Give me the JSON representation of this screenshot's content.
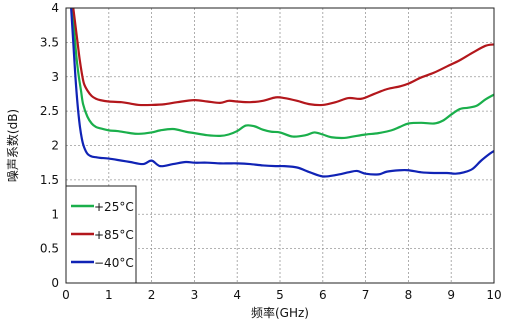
{
  "chart_data": {
    "type": "line",
    "xlabel": "频率(GHz)",
    "ylabel": "噪声系数(dB)",
    "xlim": [
      0,
      10
    ],
    "ylim": [
      0,
      4
    ],
    "xticks": [
      "0",
      "1",
      "2",
      "3",
      "4",
      "5",
      "6",
      "7",
      "8",
      "9",
      "10"
    ],
    "yticks": [
      "0",
      "0.5",
      "1",
      "1.5",
      "2",
      "2.5",
      "3",
      "3.5",
      "4"
    ],
    "grid": true,
    "legend_position": "bottom-left",
    "series": [
      {
        "name": "+25°C",
        "color": "#1aaf4b",
        "x": [
          0.15,
          0.2,
          0.25,
          0.3,
          0.35,
          0.4,
          0.5,
          0.6,
          0.7,
          0.8,
          1.0,
          1.2,
          1.5,
          1.7,
          2.0,
          2.2,
          2.5,
          2.8,
          3.0,
          3.3,
          3.6,
          3.8,
          4.0,
          4.2,
          4.4,
          4.6,
          4.8,
          5.0,
          5.3,
          5.6,
          5.8,
          6.0,
          6.2,
          6.5,
          6.7,
          7.0,
          7.3,
          7.6,
          7.8,
          8.0,
          8.3,
          8.6,
          8.8,
          9.0,
          9.2,
          9.4,
          9.6,
          9.8,
          10.0
        ],
        "values": [
          4.0,
          3.6,
          3.25,
          3.0,
          2.8,
          2.6,
          2.42,
          2.32,
          2.27,
          2.25,
          2.22,
          2.21,
          2.18,
          2.17,
          2.19,
          2.22,
          2.24,
          2.2,
          2.18,
          2.15,
          2.14,
          2.16,
          2.21,
          2.29,
          2.28,
          2.23,
          2.2,
          2.19,
          2.13,
          2.15,
          2.19,
          2.16,
          2.12,
          2.11,
          2.13,
          2.16,
          2.18,
          2.22,
          2.27,
          2.32,
          2.33,
          2.32,
          2.36,
          2.45,
          2.53,
          2.55,
          2.58,
          2.67,
          2.74
        ]
      },
      {
        "name": "+85°C",
        "color": "#b3171c",
        "x": [
          0.17,
          0.22,
          0.27,
          0.32,
          0.37,
          0.42,
          0.5,
          0.6,
          0.7,
          0.8,
          1.0,
          1.3,
          1.5,
          1.7,
          2.0,
          2.3,
          2.6,
          3.0,
          3.3,
          3.6,
          3.8,
          4.0,
          4.3,
          4.6,
          4.9,
          5.1,
          5.4,
          5.7,
          6.0,
          6.3,
          6.6,
          6.9,
          7.2,
          7.5,
          7.8,
          8.0,
          8.3,
          8.6,
          8.9,
          9.2,
          9.5,
          9.8,
          10.0
        ],
        "values": [
          4.0,
          3.75,
          3.5,
          3.25,
          3.05,
          2.9,
          2.8,
          2.72,
          2.68,
          2.66,
          2.64,
          2.63,
          2.61,
          2.59,
          2.59,
          2.6,
          2.63,
          2.66,
          2.64,
          2.62,
          2.65,
          2.64,
          2.63,
          2.65,
          2.7,
          2.69,
          2.65,
          2.6,
          2.59,
          2.63,
          2.69,
          2.68,
          2.75,
          2.82,
          2.86,
          2.9,
          2.99,
          3.06,
          3.15,
          3.24,
          3.35,
          3.45,
          3.47
        ]
      },
      {
        "name": "−40°C",
        "color": "#1023b5",
        "x": [
          0.12,
          0.17,
          0.22,
          0.27,
          0.32,
          0.37,
          0.42,
          0.5,
          0.6,
          0.7,
          0.8,
          1.0,
          1.3,
          1.5,
          1.8,
          2.0,
          2.2,
          2.5,
          2.8,
          3.0,
          3.3,
          3.6,
          3.8,
          4.0,
          4.3,
          4.6,
          4.9,
          5.1,
          5.4,
          5.7,
          6.0,
          6.3,
          6.6,
          6.8,
          7.0,
          7.3,
          7.5,
          7.8,
          8.0,
          8.3,
          8.6,
          8.9,
          9.1,
          9.3,
          9.5,
          9.7,
          9.9,
          10.0
        ],
        "values": [
          4.0,
          3.5,
          3.0,
          2.6,
          2.3,
          2.1,
          1.98,
          1.88,
          1.84,
          1.83,
          1.82,
          1.81,
          1.78,
          1.76,
          1.73,
          1.78,
          1.7,
          1.73,
          1.76,
          1.75,
          1.75,
          1.74,
          1.74,
          1.74,
          1.73,
          1.71,
          1.7,
          1.7,
          1.68,
          1.61,
          1.55,
          1.57,
          1.61,
          1.63,
          1.59,
          1.58,
          1.62,
          1.64,
          1.64,
          1.61,
          1.6,
          1.6,
          1.59,
          1.61,
          1.66,
          1.78,
          1.88,
          1.92
        ]
      }
    ]
  }
}
